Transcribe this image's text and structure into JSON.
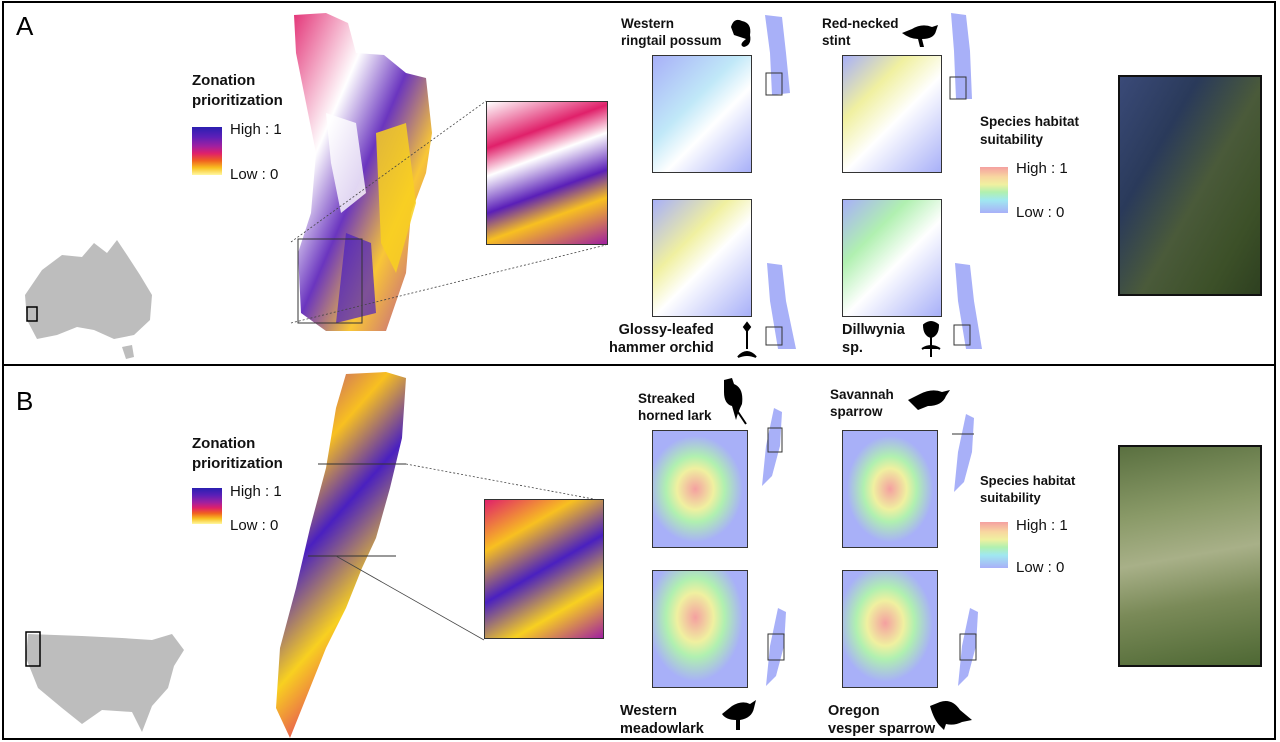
{
  "panels": {
    "a": {
      "letter": "A",
      "zonation": {
        "title_line1": "Zonation",
        "title_line2": "prioritization",
        "high": "High : 1",
        "low": "Low : 0"
      },
      "suitability": {
        "title_line1": "Species habitat",
        "title_line2": "suitability",
        "high": "High : 1",
        "low": "Low : 0"
      },
      "species": {
        "top_left": {
          "line1": "Western",
          "line2": "ringtail possum",
          "icon": "possum-icon"
        },
        "top_right": {
          "line1": "Red-necked",
          "line2": "stint",
          "icon": "bird-icon"
        },
        "bottom_left": {
          "line1": "Glossy-leafed",
          "line2": "hammer orchid",
          "icon": "orchid-icon"
        },
        "bottom_right": {
          "line1": "Dillwynia",
          "line2": "sp.",
          "icon": "flower-icon"
        }
      }
    },
    "b": {
      "letter": "B",
      "zonation": {
        "title_line1": "Zonation",
        "title_line2": "prioritization",
        "high": "High : 1",
        "low": "Low : 0"
      },
      "suitability": {
        "title_line1": "Species habitat",
        "title_line2": "suitability",
        "high": "High : 1",
        "low": "Low : 0"
      },
      "species": {
        "top_left": {
          "line1": "Streaked",
          "line2": "horned lark",
          "icon": "lark-icon"
        },
        "top_right": {
          "line1": "Savannah",
          "line2": "sparrow",
          "icon": "sparrow-icon"
        },
        "bottom_left": {
          "line1": "Western",
          "line2": "meadowlark",
          "icon": "meadowlark-icon"
        },
        "bottom_right": {
          "line1": "Oregon",
          "line2": "vesper sparrow",
          "icon": "vesper-sparrow-icon"
        }
      }
    }
  },
  "colors": {
    "suitability_low": "#a8b0f8",
    "zonation_high": "#2a1fb0",
    "zonation_low": "#fff8a0"
  }
}
